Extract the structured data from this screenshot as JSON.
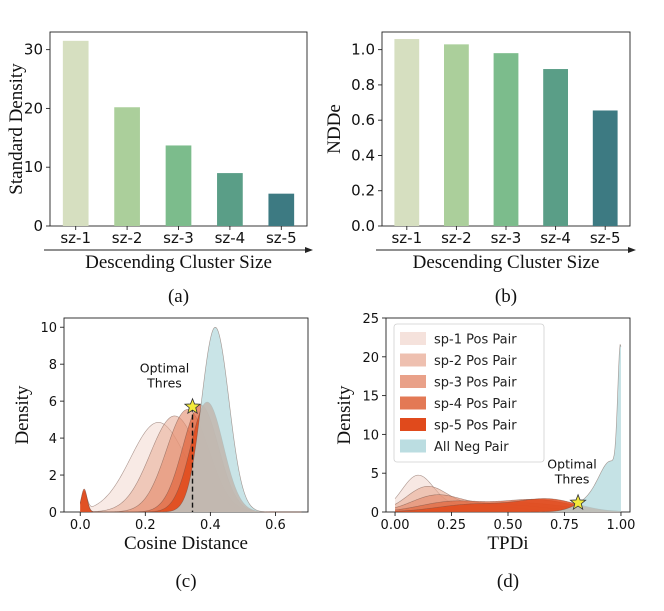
{
  "chart_data": [
    {
      "id": "a",
      "type": "bar",
      "caption": "(a)",
      "xlabel": "Descending Cluster Size",
      "ylabel": "Standard Density",
      "categories": [
        "sz-1",
        "sz-2",
        "sz-3",
        "sz-4",
        "sz-5"
      ],
      "values": [
        31.5,
        20.2,
        13.7,
        9.0,
        5.5
      ],
      "colors": [
        "#d6dfc0",
        "#abcf9b",
        "#7cbc8c",
        "#5a9e87",
        "#3d7a82"
      ],
      "ylim": [
        0,
        33
      ],
      "yticks": [
        0,
        10,
        20,
        30
      ],
      "ytick_labels": [
        "0",
        "10",
        "20",
        "30"
      ]
    },
    {
      "id": "b",
      "type": "bar",
      "caption": "(b)",
      "xlabel": "Descending Cluster Size",
      "ylabel": "NDDe",
      "categories": [
        "sz-1",
        "sz-2",
        "sz-3",
        "sz-4",
        "sz-5"
      ],
      "values": [
        1.06,
        1.03,
        0.98,
        0.89,
        0.655
      ],
      "colors": [
        "#d6dfc0",
        "#abcf9b",
        "#7cbc8c",
        "#5a9e87",
        "#3d7a82"
      ],
      "ylim": [
        0,
        1.1
      ],
      "yticks": [
        0,
        0.2,
        0.4,
        0.6,
        0.8,
        1.0
      ],
      "ytick_labels": [
        "0.0",
        "0.2",
        "0.4",
        "0.6",
        "0.8",
        "1.0"
      ]
    },
    {
      "id": "c",
      "type": "area",
      "caption": "(c)",
      "xlabel": "Cosine Distance",
      "ylabel": "Density",
      "xlim": [
        -0.05,
        0.7
      ],
      "ylim": [
        0,
        10.5
      ],
      "xticks": [
        0.0,
        0.2,
        0.4,
        0.6
      ],
      "xtick_labels": [
        "0.0",
        "0.2",
        "0.4",
        "0.6"
      ],
      "yticks": [
        0,
        2,
        4,
        6,
        8,
        10
      ],
      "ytick_labels": [
        "0",
        "2",
        "4",
        "6",
        "8",
        "10"
      ],
      "series": [
        {
          "color": "#f2d8d0",
          "opacity": 0.55,
          "peaks": [
            [
              0.012,
              0.009,
              0.95
            ],
            [
              0.24,
              0.085,
              4.85
            ]
          ]
        },
        {
          "color": "#e8ab95",
          "opacity": 0.55,
          "peaks": [
            [
              0.012,
              0.009,
              1.0
            ],
            [
              0.29,
              0.075,
              5.2
            ]
          ]
        },
        {
          "color": "#e48a6b",
          "opacity": 0.6,
          "peaks": [
            [
              0.012,
              0.009,
              1.05
            ],
            [
              0.33,
              0.065,
              5.55
            ]
          ]
        },
        {
          "color": "#e06a43",
          "opacity": 0.75,
          "peaks": [
            [
              0.012,
              0.009,
              1.15
            ],
            [
              0.37,
              0.055,
              5.8
            ]
          ]
        },
        {
          "color": "#e04a1c",
          "opacity": 0.85,
          "peaks": [
            [
              0.012,
              0.009,
              1.25
            ],
            [
              0.39,
              0.05,
              5.95
            ]
          ]
        },
        {
          "color": "#b7dbdf",
          "opacity": 0.75,
          "peaks": [
            [
              0.415,
              0.042,
              10.0
            ]
          ]
        }
      ],
      "annotation": {
        "lines": [
          "Optimal",
          "Thres"
        ],
        "x": 0.345,
        "y": 5.7
      },
      "star_color": "#f3ea3a"
    },
    {
      "id": "d",
      "type": "area",
      "caption": "(d)",
      "xlabel": "TPDi",
      "ylabel": "Density",
      "xlim": [
        -0.04,
        1.04
      ],
      "ylim": [
        0,
        25
      ],
      "xticks": [
        0.0,
        0.25,
        0.5,
        0.75,
        1.0
      ],
      "xtick_labels": [
        "0.00",
        "0.25",
        "0.50",
        "0.75",
        "1.00"
      ],
      "yticks": [
        0,
        5,
        10,
        15,
        20,
        25
      ],
      "ytick_labels": [
        "0",
        "5",
        "10",
        "15",
        "20",
        "25"
      ],
      "series": [
        {
          "name": "sp-1 Pos Pair",
          "color": "#f2d8d0",
          "opacity": 0.6,
          "peaks": [
            [
              0.1,
              0.07,
              4.4
            ],
            [
              0.35,
              0.18,
              0.9
            ]
          ]
        },
        {
          "name": "sp-2 Pos Pair",
          "color": "#e8ab95",
          "opacity": 0.6,
          "peaks": [
            [
              0.14,
              0.09,
              3.0
            ],
            [
              0.45,
              0.2,
              1.0
            ]
          ]
        },
        {
          "name": "sp-3 Pos Pair",
          "color": "#e48a6b",
          "opacity": 0.65,
          "peaks": [
            [
              0.18,
              0.11,
              2.0
            ],
            [
              0.55,
              0.2,
              1.2
            ]
          ]
        },
        {
          "name": "sp-4 Pos Pair",
          "color": "#e06a43",
          "opacity": 0.75,
          "peaks": [
            [
              0.25,
              0.14,
              1.3
            ],
            [
              0.62,
              0.16,
              1.6
            ]
          ]
        },
        {
          "name": "sp-5 Pos Pair",
          "color": "#e04a1c",
          "opacity": 0.85,
          "peaks": [
            [
              0.35,
              0.16,
              1.0
            ],
            [
              0.68,
              0.13,
              1.6
            ]
          ]
        },
        {
          "name": "All Neg Pair",
          "color": "#b7dbdf",
          "opacity": 0.8,
          "peaks": [
            [
              0.998,
              0.012,
              17.0
            ],
            [
              0.96,
              0.05,
              5.0
            ],
            [
              0.9,
              0.08,
              2.0
            ]
          ]
        }
      ],
      "annotation": {
        "lines": [
          "Optimal",
          "Thres"
        ],
        "x": 0.81,
        "y": 1.2
      },
      "star_color": "#f3ea3a"
    }
  ]
}
